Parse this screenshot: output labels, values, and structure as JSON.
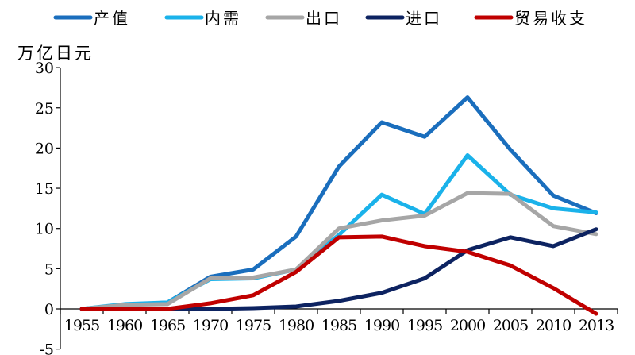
{
  "chart_data": {
    "type": "line",
    "title": "",
    "ylabel": "万亿日元",
    "xlabel": "",
    "ylim": [
      -5,
      30
    ],
    "yticks": [
      -5,
      0,
      5,
      10,
      15,
      20,
      25,
      30
    ],
    "categories": [
      "1955",
      "1960",
      "1965",
      "1970",
      "1975",
      "1980",
      "1985",
      "1990",
      "1995",
      "2000",
      "2005",
      "2010",
      "2013"
    ],
    "legend_position": "top",
    "grid": false,
    "series": [
      {
        "name": "产值",
        "color": "#1A6EBD",
        "values": [
          0,
          0.5,
          0.8,
          4.0,
          4.9,
          9.0,
          17.7,
          23.2,
          21.4,
          26.3,
          19.8,
          14.1,
          11.9
        ]
      },
      {
        "name": "内需",
        "color": "#1AB2EA",
        "values": [
          0,
          0.6,
          0.8,
          3.7,
          3.8,
          4.9,
          9.2,
          14.2,
          11.8,
          19.1,
          14.2,
          12.5,
          12.0
        ]
      },
      {
        "name": "出口",
        "color": "#A6A6A6",
        "values": [
          0,
          0.5,
          0.6,
          3.8,
          3.9,
          4.9,
          10.0,
          11.0,
          11.6,
          14.4,
          14.3,
          10.3,
          9.3
        ]
      },
      {
        "name": "进口",
        "color": "#0D2361",
        "values": [
          0,
          0,
          0,
          0,
          0.1,
          0.3,
          1.0,
          2.0,
          3.8,
          7.3,
          8.9,
          7.8,
          9.9
        ]
      },
      {
        "name": "贸易收支",
        "color": "#C00000",
        "values": [
          0,
          0,
          0,
          0.7,
          1.7,
          4.6,
          8.9,
          9.0,
          7.8,
          7.1,
          5.4,
          2.6,
          -0.6
        ]
      }
    ]
  }
}
